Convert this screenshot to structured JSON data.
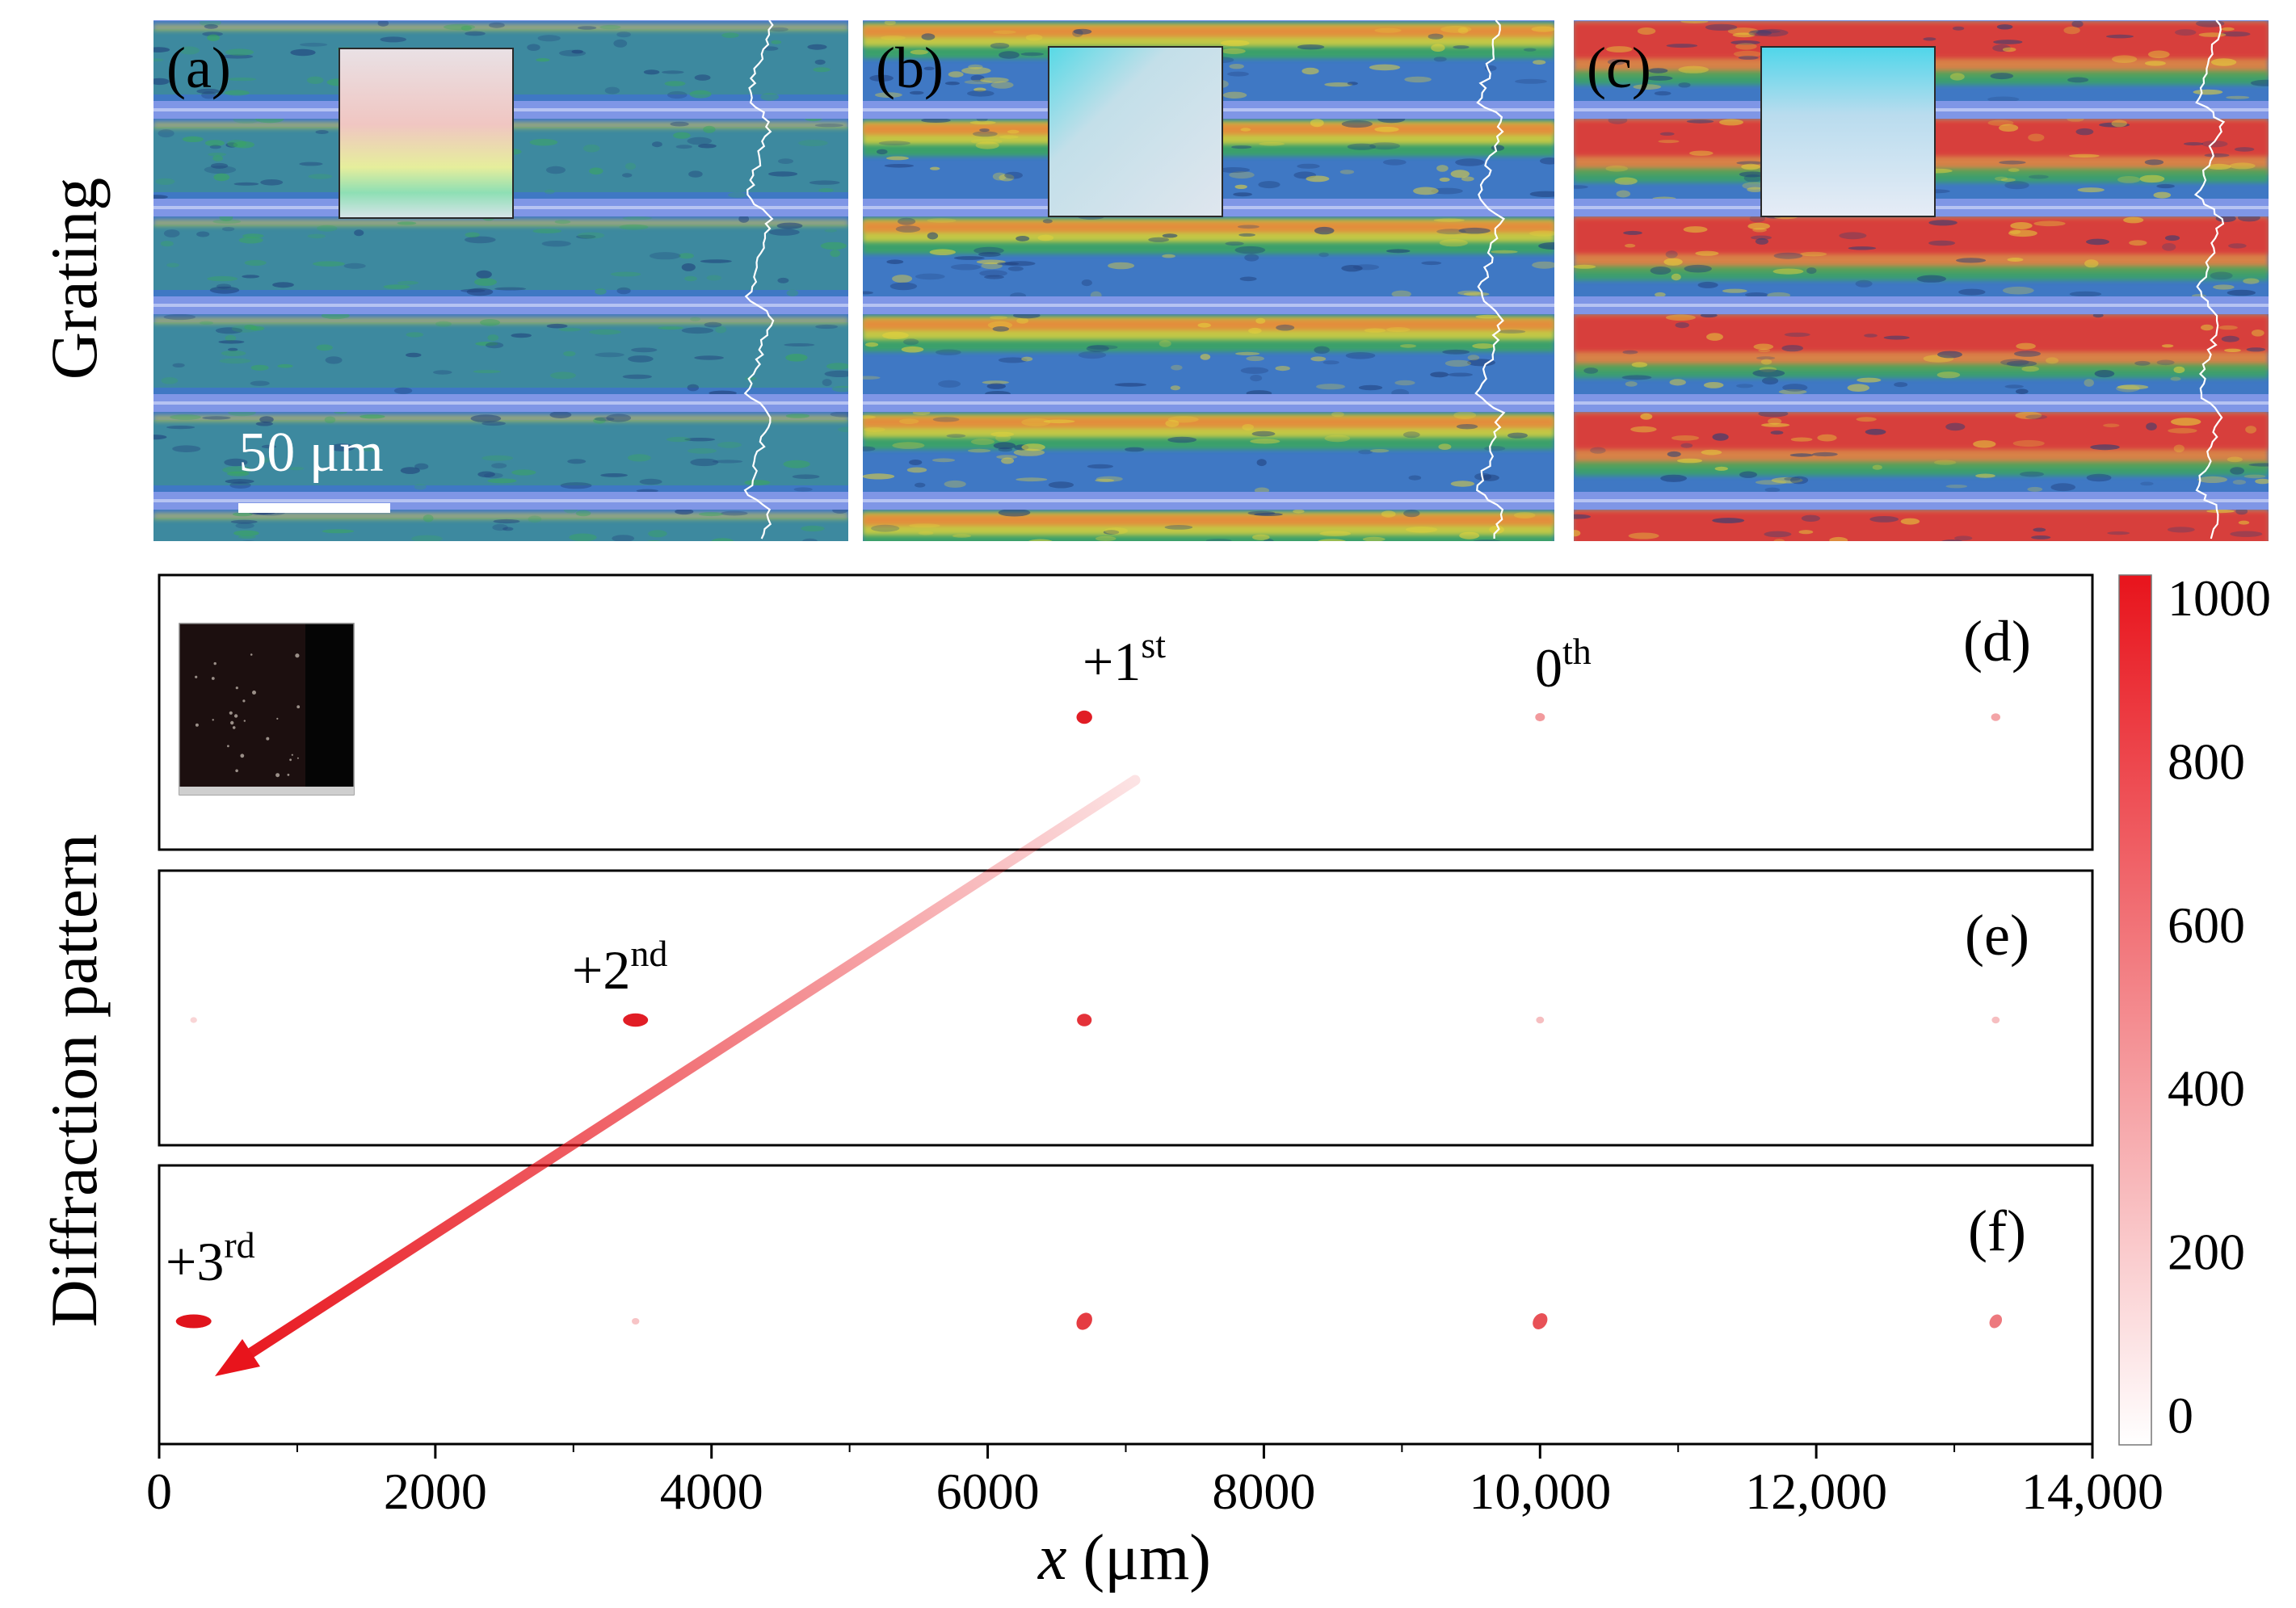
{
  "figure": {
    "row_labels": {
      "top": "Grating",
      "bottom": "Diffraction pattern"
    },
    "panels": [
      {
        "tag": "(a)",
        "scheme": "a"
      },
      {
        "tag": "(b)",
        "scheme": "b"
      },
      {
        "tag": "(c)",
        "scheme": "c"
      }
    ],
    "scale_bar": {
      "label": "50 μm"
    },
    "diffraction_panels": [
      {
        "tag": "(d)"
      },
      {
        "tag": "(e)"
      },
      {
        "tag": "(f)"
      }
    ],
    "order_labels": [
      {
        "base": "+1",
        "sup": "st"
      },
      {
        "base": "0",
        "sup": "th"
      },
      {
        "base": "+2",
        "sup": "nd"
      },
      {
        "base": "+3",
        "sup": "rd"
      }
    ],
    "x_axis": {
      "label_var": "x",
      "label_unit": " (μm)",
      "min": 0,
      "max": 14000,
      "ticks": [
        0,
        2000,
        4000,
        6000,
        8000,
        10000,
        12000,
        14000
      ],
      "tick_labels": [
        "0",
        "2000",
        "4000",
        "6000",
        "8000",
        "10,000",
        "12,000",
        "14,000"
      ],
      "minor_step": 1000
    },
    "colorbar": {
      "min": 0,
      "max": 1000,
      "ticks": [
        0,
        200,
        400,
        600,
        800,
        1000
      ],
      "tick_labels": [
        "0",
        "200",
        "400",
        "600",
        "800",
        "1000"
      ],
      "low_color": "#ffffff",
      "high_color": "#e8141c"
    },
    "colors": {
      "blue_bg": "#3f78c4",
      "stripe": "#7f96e6",
      "green": "#3aa85c",
      "yellow": "#e4d23c",
      "orange": "#e8843a",
      "red": "#d8393a",
      "spot": "#e0141c",
      "arrow": "#e8141c"
    }
  },
  "chart_data": {
    "type": "scatter",
    "title": "Diffraction pattern",
    "xlabel": "x (μm)",
    "ylabel": "",
    "xlim": [
      0,
      14000
    ],
    "colorbar_range": [
      0,
      1000
    ],
    "series": [
      {
        "name": "(d)",
        "spots": [
          {
            "x": 6700,
            "intensity": 950,
            "label": "+1st"
          },
          {
            "x": 10000,
            "intensity": 330,
            "label": "0th"
          },
          {
            "x": 13300,
            "intensity": 280
          }
        ]
      },
      {
        "name": "(e)",
        "spots": [
          {
            "x": 250,
            "intensity": 30
          },
          {
            "x": 3450,
            "intensity": 950,
            "label": "+2nd"
          },
          {
            "x": 6700,
            "intensity": 850
          },
          {
            "x": 10000,
            "intensity": 150
          },
          {
            "x": 13300,
            "intensity": 150
          }
        ]
      },
      {
        "name": "(f)",
        "spots": [
          {
            "x": 250,
            "intensity": 1000,
            "label": "+3rd"
          },
          {
            "x": 3450,
            "intensity": 120
          },
          {
            "x": 6700,
            "intensity": 800
          },
          {
            "x": 10000,
            "intensity": 700
          },
          {
            "x": 13300,
            "intensity": 500
          }
        ]
      }
    ]
  }
}
